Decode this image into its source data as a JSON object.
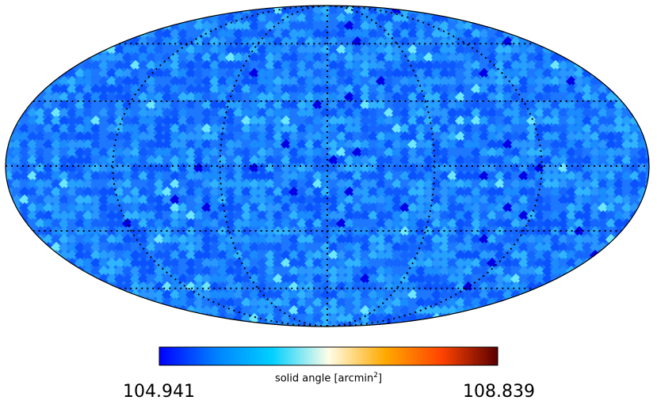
{
  "chart_data": {
    "type": "heatmap",
    "projection": "mollweide",
    "colormap": [
      "#0000ff",
      "#0080ff",
      "#00d0ff",
      "#fffde8",
      "#ffaa00",
      "#ff4400",
      "#5a0000"
    ],
    "colorbar": {
      "min_label": "104.941",
      "max_label": "108.839",
      "label_prefix": "solid angle [arcmin",
      "label_sup": "2",
      "label_suffix": "]",
      "range": [
        104.941,
        108.839
      ]
    },
    "graticule": {
      "latitudes_deg": [
        -60,
        -30,
        0,
        30,
        60
      ],
      "longitudes_deg": [
        -120,
        -60,
        0,
        60,
        120
      ],
      "style": "dotted"
    }
  }
}
